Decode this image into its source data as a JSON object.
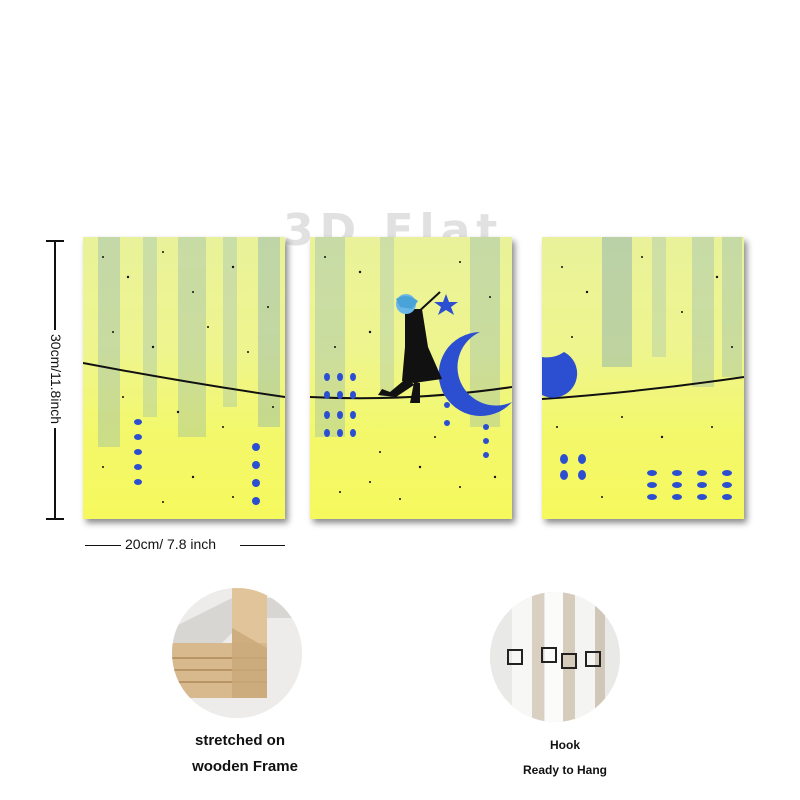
{
  "watermark": "3D Flat",
  "dimensions": {
    "height_label": "30cm/11.8inch",
    "width_label": "20cm/ 7.8 inch"
  },
  "panels": [
    {
      "name": "left-panel"
    },
    {
      "name": "center-panel"
    },
    {
      "name": "right-panel"
    }
  ],
  "features": {
    "frame": {
      "line1": "stretched on",
      "line2": "wooden Frame"
    },
    "hook": {
      "line1": "Hook",
      "line2": "Ready to Hang"
    }
  },
  "colors": {
    "background_yellow": "#f3f86a",
    "accent_blue": "#2b4fd0",
    "wood": "#d8b98e"
  }
}
